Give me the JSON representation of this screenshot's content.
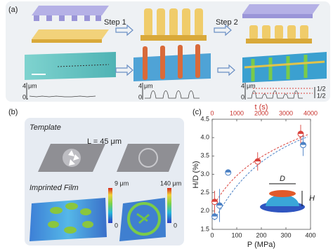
{
  "panel_a": {
    "label": "(a)",
    "steps": [
      "Step 1",
      "Step 2"
    ],
    "profile_axis": {
      "top": "4",
      "unit": "μm",
      "bottom": "0"
    },
    "fraction": "1/2"
  },
  "panel_b": {
    "label": "(b)",
    "template": "Template",
    "length": "L = 45 μm",
    "film": "Imprinted Film",
    "scales": [
      {
        "top": "9 μm",
        "bottom": "0"
      },
      {
        "top": "140 μm",
        "bottom": "0"
      }
    ]
  },
  "chart_data": {
    "type": "scatter",
    "label": "(c)",
    "xlabel": "P (MPa)",
    "x2label": "t (s)",
    "ylabel": "H/D (%)",
    "xlim": [
      0,
      400
    ],
    "xticks": [
      0,
      100,
      200,
      300,
      400
    ],
    "x2lim": [
      0,
      4000
    ],
    "x2ticks": [
      0,
      1000,
      2000,
      3000,
      4000
    ],
    "ylim": [
      1.5,
      4.5
    ],
    "yticks": [
      1.5,
      {
        "value": 2,
        "label": "2.0"
      },
      2.5,
      {
        "value": 3,
        "label": "3.0"
      },
      3.5,
      {
        "value": 4,
        "label": "4.0"
      },
      4.5
    ],
    "series": [
      {
        "color": "#4a80c4",
        "x": [
          10,
          30,
          65,
          370
        ],
        "values": [
          1.85,
          2.15,
          3.05,
          3.8
        ],
        "errors": [
          0.1,
          0.45,
          0.08,
          0.3
        ]
      },
      {
        "color": "#d9413a",
        "axis": "x2",
        "x": [
          100,
          1850,
          3600
        ],
        "values": [
          2.25,
          3.35,
          4.1
        ],
        "errors": [
          0.3,
          0.25,
          0.25
        ]
      }
    ],
    "inset": {
      "diameter": "D",
      "height": "H"
    }
  }
}
